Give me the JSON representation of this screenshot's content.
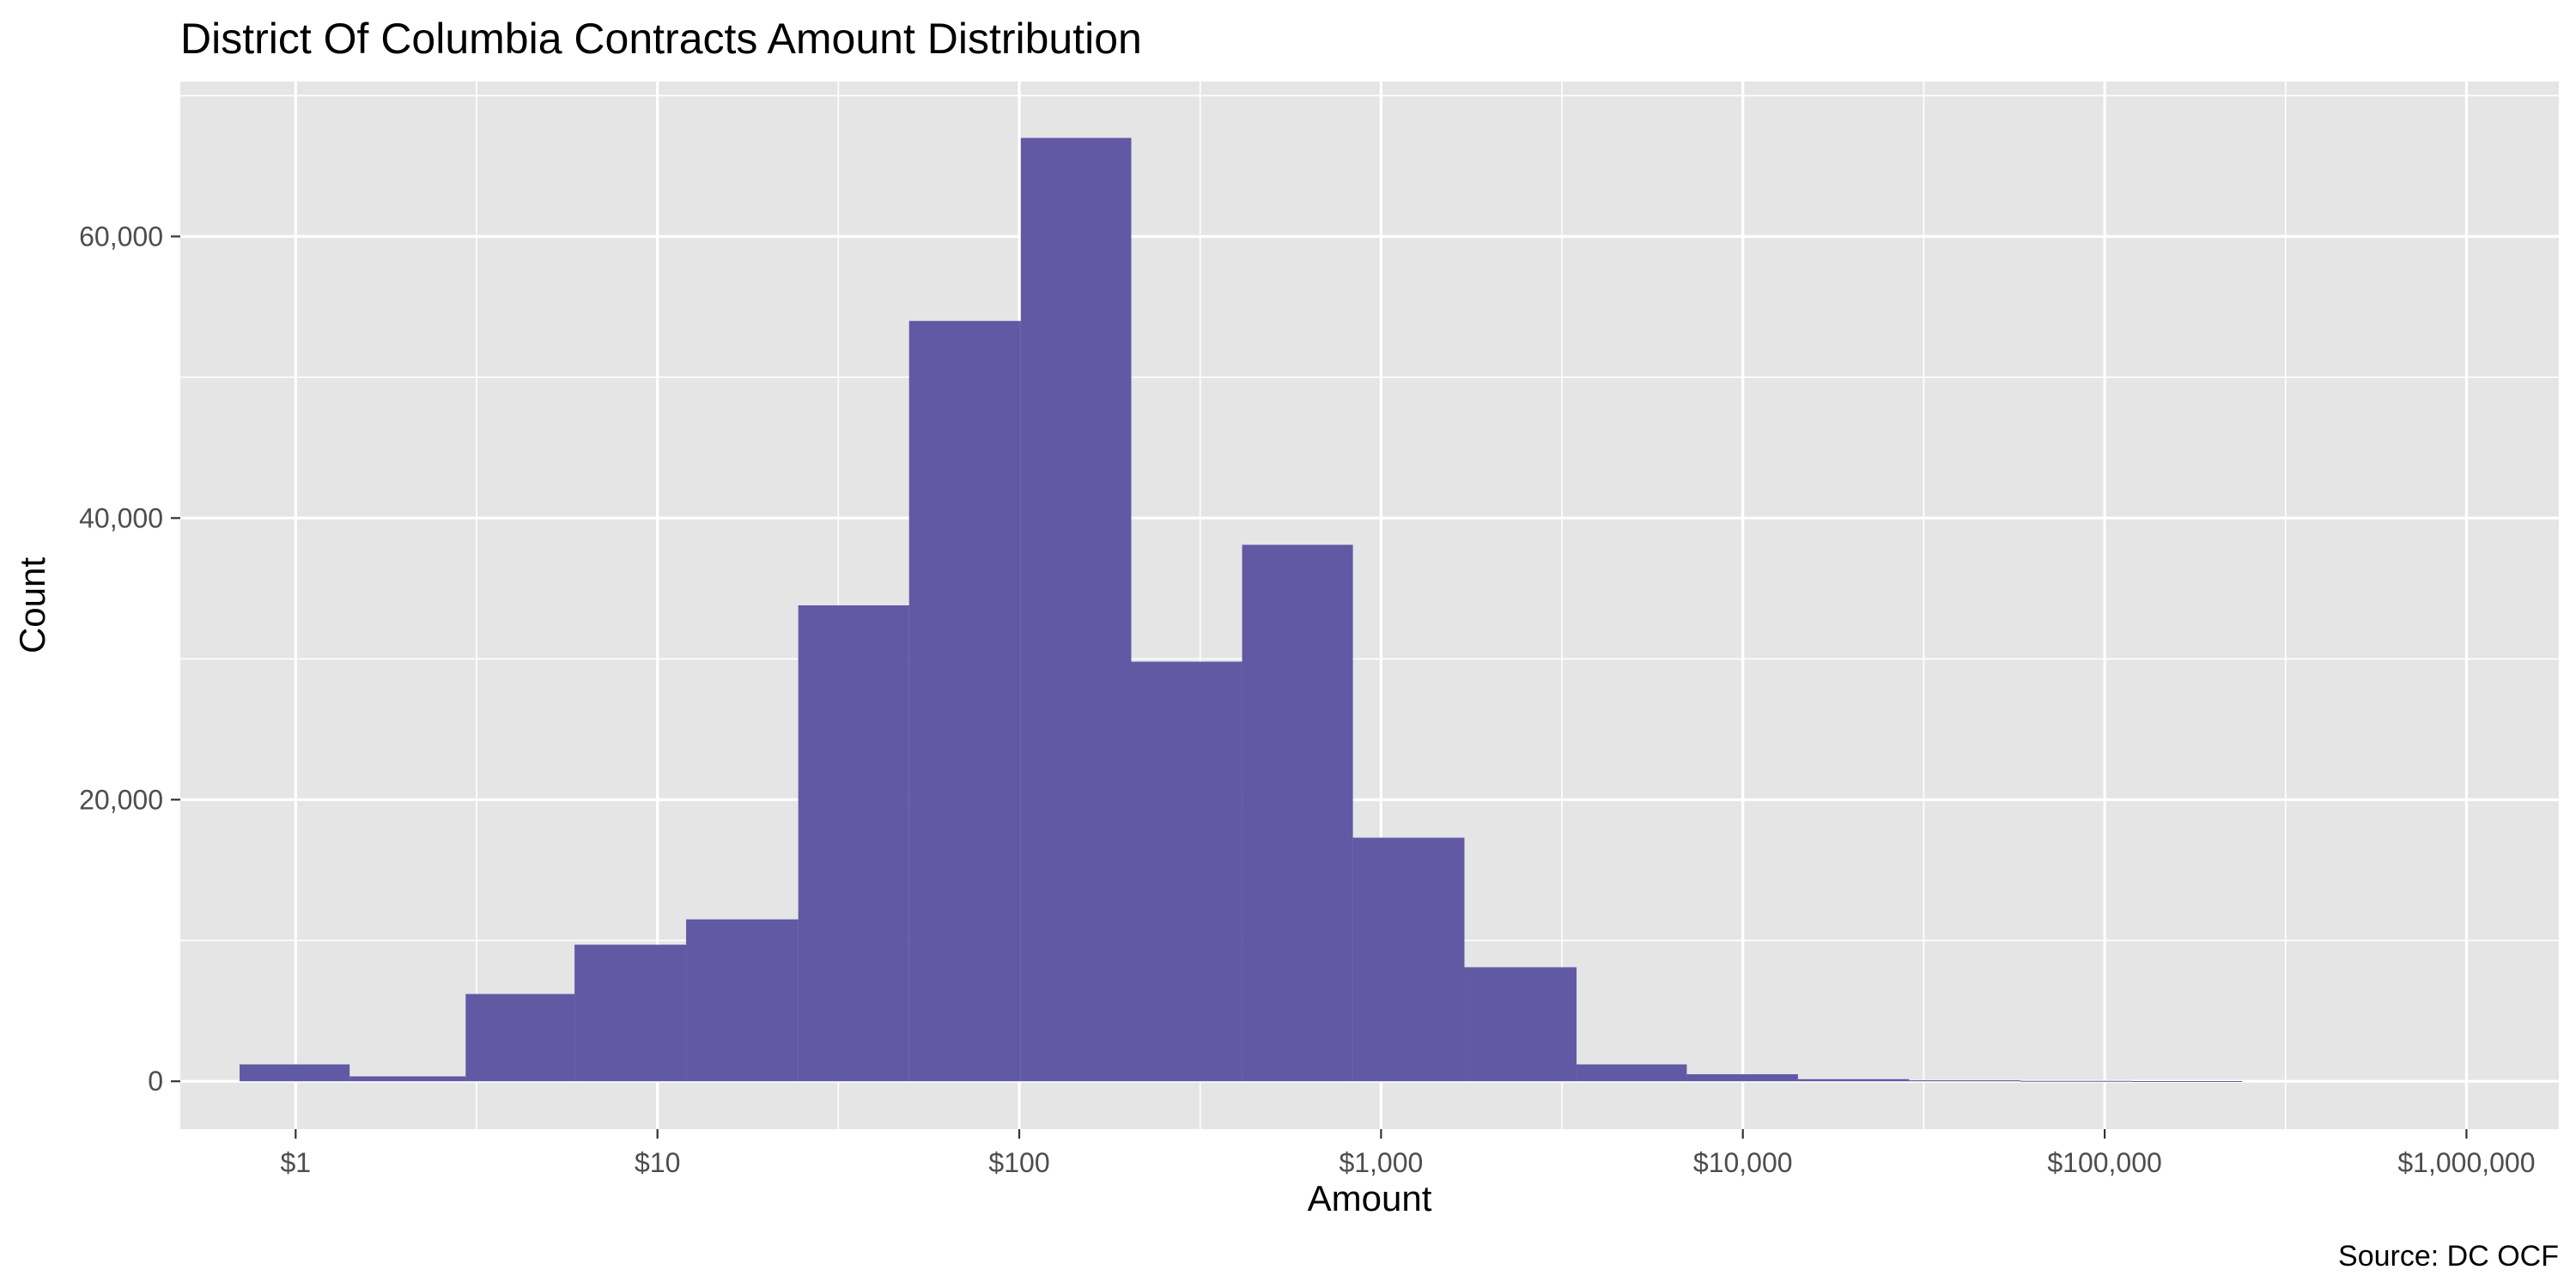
{
  "chart_data": {
    "type": "bar",
    "title": "District Of Columbia Contracts Amount Distribution",
    "xlabel": "Amount",
    "ylabel": "Count",
    "caption": "Source: DC OCF",
    "x_scale": "log10",
    "xlim": [
      0.48,
      1800000
    ],
    "ylim": [
      -3400,
      71000
    ],
    "grid": true,
    "legend": "none",
    "colors": {
      "bar_fill": "#6159A4",
      "panel_background": "#E5E5E5",
      "gridline": "#FFFFFF",
      "tick_label": "#4D4D4D"
    },
    "x_ticks": [
      {
        "value": 1,
        "label": "$1"
      },
      {
        "value": 10,
        "label": "$10"
      },
      {
        "value": 100,
        "label": "$100"
      },
      {
        "value": 1000,
        "label": "$1,000"
      },
      {
        "value": 10000,
        "label": "$10,000"
      },
      {
        "value": 100000,
        "label": "$100,000"
      },
      {
        "value": 1000000,
        "label": "$1,000,000"
      }
    ],
    "y_ticks": [
      {
        "value": 0,
        "label": "0"
      },
      {
        "value": 20000,
        "label": "20,000"
      },
      {
        "value": 40000,
        "label": "40,000"
      },
      {
        "value": 60000,
        "label": "60,000"
      }
    ],
    "bins": [
      {
        "x0": 0.7,
        "x1": 1.41,
        "count": 1200
      },
      {
        "x0": 1.41,
        "x1": 2.95,
        "count": 350
      },
      {
        "x0": 2.95,
        "x1": 5.9,
        "count": 6200
      },
      {
        "x0": 5.9,
        "x1": 12.0,
        "count": 9700
      },
      {
        "x0": 12.0,
        "x1": 24.5,
        "count": 11500
      },
      {
        "x0": 24.5,
        "x1": 49.6,
        "count": 33800
      },
      {
        "x0": 49.6,
        "x1": 101.0,
        "count": 54000
      },
      {
        "x0": 101.0,
        "x1": 204.0,
        "count": 67000
      },
      {
        "x0": 204.0,
        "x1": 413.0,
        "count": 29800
      },
      {
        "x0": 413.0,
        "x1": 836.0,
        "count": 38100
      },
      {
        "x0": 836.0,
        "x1": 1700.0,
        "count": 17300
      },
      {
        "x0": 1700.0,
        "x1": 3470.0,
        "count": 8100
      },
      {
        "x0": 3470.0,
        "x1": 7000.0,
        "count": 1200
      },
      {
        "x0": 7000.0,
        "x1": 14200.0,
        "count": 500
      },
      {
        "x0": 14200.0,
        "x1": 28800.0,
        "count": 150
      },
      {
        "x0": 28800.0,
        "x1": 58500.0,
        "count": 70
      },
      {
        "x0": 58500.0,
        "x1": 119000.0,
        "count": 30
      },
      {
        "x0": 119000.0,
        "x1": 240000.0,
        "count": 15
      }
    ]
  }
}
